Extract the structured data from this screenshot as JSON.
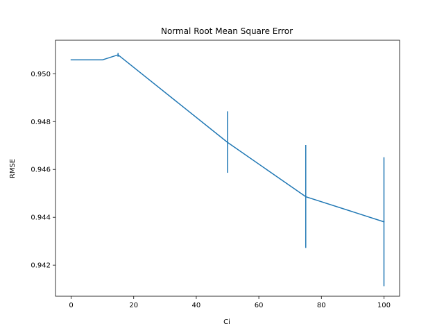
{
  "chart_data": {
    "type": "line",
    "title": "Normal Root Mean Square Error",
    "xlabel": "Ci",
    "ylabel": "RMSE",
    "xlim": [
      -5,
      105
    ],
    "ylim": [
      0.9407,
      0.9514
    ],
    "grid": false,
    "x_ticks": [
      0,
      20,
      40,
      60,
      80,
      100
    ],
    "y_ticks": [
      0.942,
      0.944,
      0.946,
      0.948,
      0.95
    ],
    "x_tick_labels": [
      "0",
      "20",
      "40",
      "60",
      "80",
      "100"
    ],
    "y_tick_labels": [
      "0.942",
      "0.944",
      "0.946",
      "0.948",
      "0.950"
    ],
    "series": [
      {
        "color": "#1f77b4",
        "x": [
          0,
          10,
          15,
          50,
          75,
          100
        ],
        "y": [
          0.95058,
          0.95058,
          0.95079,
          0.94713,
          0.94486,
          0.94381
        ],
        "yerr_low": [
          0.95058,
          0.95058,
          0.95071,
          0.94586,
          0.94272,
          0.94112
        ],
        "yerr_high": [
          0.95058,
          0.95058,
          0.95087,
          0.94843,
          0.94702,
          0.94651
        ]
      }
    ]
  }
}
